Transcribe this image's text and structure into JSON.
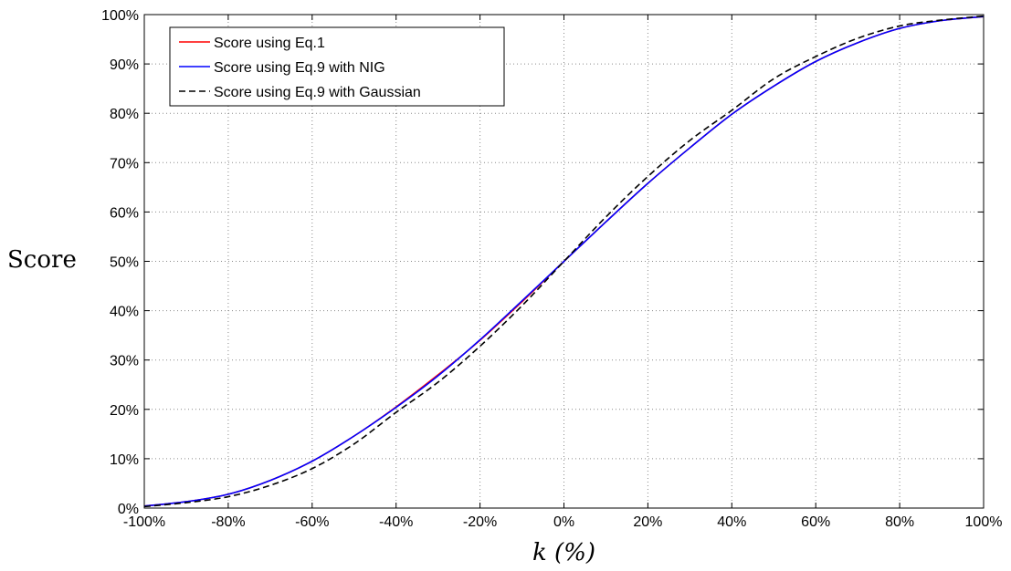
{
  "chart_data": {
    "type": "line",
    "xlabel": "k (%)",
    "ylabel": "Score",
    "xlim": [
      -100,
      100
    ],
    "ylim": [
      0,
      100
    ],
    "xticks": [
      "-100%",
      "-80%",
      "-60%",
      "-40%",
      "-20%",
      "0%",
      "20%",
      "40%",
      "60%",
      "80%",
      "100%"
    ],
    "yticks": [
      "0%",
      "10%",
      "20%",
      "30%",
      "40%",
      "50%",
      "60%",
      "70%",
      "80%",
      "90%",
      "100%"
    ],
    "grid": true,
    "legend_position": "top-left",
    "x": [
      -100,
      -90,
      -80,
      -70,
      -60,
      -50,
      -40,
      -30,
      -20,
      -10,
      0,
      10,
      20,
      30,
      40,
      50,
      60,
      70,
      80,
      90,
      100
    ],
    "series": [
      {
        "name": "Score using Eq.1",
        "color": "#ff0000",
        "style": "solid",
        "values": [
          0.4,
          1.3,
          2.8,
          5.6,
          9.5,
          14.6,
          20.5,
          27.0,
          34.0,
          41.8,
          50.0,
          58.0,
          65.8,
          73.0,
          79.8,
          85.5,
          90.5,
          94.3,
          97.2,
          98.8,
          99.6
        ]
      },
      {
        "name": "Score using Eq.9 with NIG",
        "color": "#0000ff",
        "style": "solid",
        "values": [
          0.4,
          1.3,
          2.8,
          5.6,
          9.5,
          14.6,
          20.4,
          26.8,
          34.1,
          42.0,
          50.0,
          58.0,
          65.8,
          73.0,
          79.8,
          85.5,
          90.5,
          94.3,
          97.2,
          98.8,
          99.6
        ]
      },
      {
        "name": "Score using Eq.9 with Gaussian",
        "color": "#000000",
        "style": "dashed",
        "values": [
          0.3,
          1.1,
          2.3,
          4.6,
          8.0,
          13.0,
          19.4,
          25.5,
          32.8,
          41.0,
          50.0,
          59.0,
          67.2,
          74.5,
          80.6,
          87.0,
          91.5,
          95.2,
          97.7,
          98.9,
          99.7
        ]
      }
    ]
  }
}
